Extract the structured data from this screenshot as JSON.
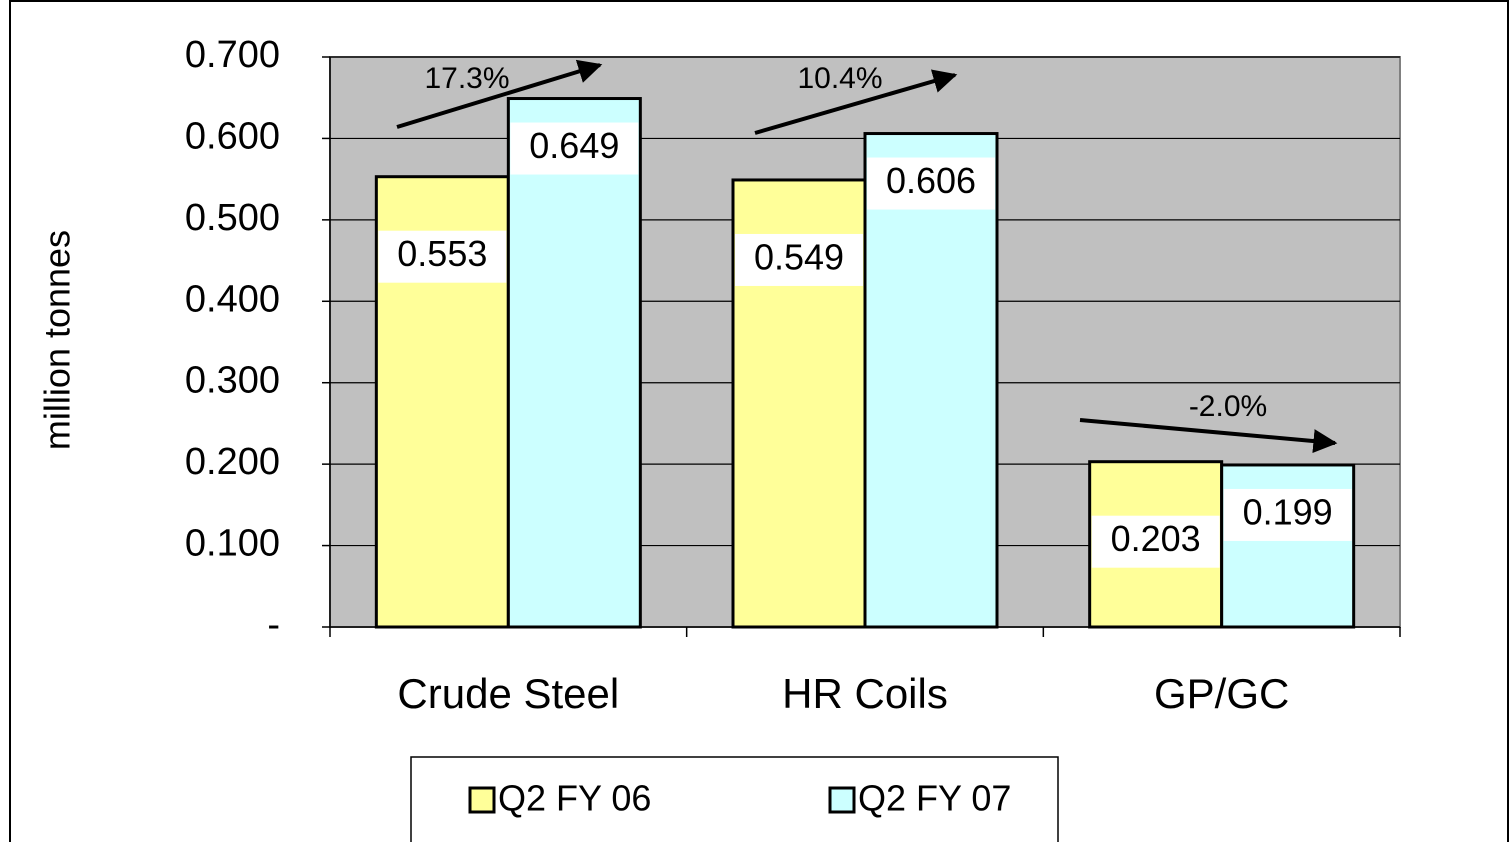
{
  "chart_data": {
    "type": "bar",
    "y_label": "million tonnes",
    "categories": [
      "Crude Steel",
      "HR Coils",
      "GP/GC"
    ],
    "series": [
      {
        "name": "Q2 FY 06",
        "color": "#ffff99",
        "values": [
          0.553,
          0.549,
          0.203
        ]
      },
      {
        "name": "Q2 FY 07",
        "color": "#ccffff",
        "values": [
          0.649,
          0.606,
          0.199
        ]
      }
    ],
    "annotations": [
      "17.3%",
      "10.4%",
      "-2.0%"
    ],
    "ylim": [
      0,
      0.7
    ],
    "yticks": [
      {
        "value": 0,
        "label": "-"
      },
      {
        "value": 0.1,
        "label": "0.100"
      },
      {
        "value": 0.2,
        "label": "0.200"
      },
      {
        "value": 0.3,
        "label": "0.300"
      },
      {
        "value": 0.4,
        "label": "0.400"
      },
      {
        "value": 0.5,
        "label": "0.500"
      },
      {
        "value": 0.6,
        "label": "0.600"
      },
      {
        "value": 0.7,
        "label": "0.700"
      }
    ],
    "grid": true,
    "plot_background": "#c0c0c0",
    "legend": "bottom"
  }
}
